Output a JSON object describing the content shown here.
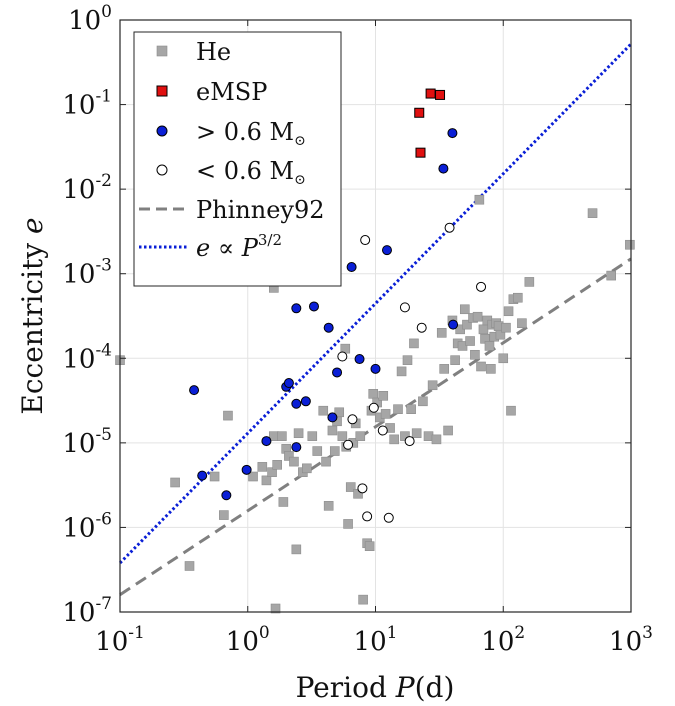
{
  "chart_data": {
    "type": "scatter",
    "xscale": "log",
    "yscale": "log",
    "xlim": [
      0.1,
      1000
    ],
    "ylim": [
      1e-07,
      1
    ],
    "grid": true,
    "xlabel": {
      "text": "Period",
      "var": "P",
      "unit": "(d)"
    },
    "ylabel": {
      "text": "Eccentricity",
      "var": "e"
    },
    "x_ticks": [
      {
        "base": "10",
        "exp": "-1"
      },
      {
        "base": "10",
        "exp": "0"
      },
      {
        "base": "10",
        "exp": "1"
      },
      {
        "base": "10",
        "exp": "2"
      },
      {
        "base": "10",
        "exp": "3"
      }
    ],
    "y_ticks": [
      {
        "base": "10",
        "exp": "-7"
      },
      {
        "base": "10",
        "exp": "-6"
      },
      {
        "base": "10",
        "exp": "-5"
      },
      {
        "base": "10",
        "exp": "-4"
      },
      {
        "base": "10",
        "exp": "-3"
      },
      {
        "base": "10",
        "exp": "-2"
      },
      {
        "base": "10",
        "exp": "-1"
      },
      {
        "base": "10",
        "exp": "0"
      }
    ],
    "legend": {
      "position": "top-left",
      "entries": [
        {
          "label": "He",
          "marker": "square",
          "color": "#a6a6a6"
        },
        {
          "label": "eMSP",
          "marker": "square",
          "color": "#e01010"
        },
        {
          "label_main": "> 0.6 M",
          "label_sub": "⊙",
          "marker": "circle",
          "color": "#0a1fd6"
        },
        {
          "label_main": "< 0.6 M",
          "label_sub": "⊙",
          "marker": "circle",
          "color": "#ffffff"
        },
        {
          "label": "Phinney92",
          "marker": "dashed-line",
          "color": "#808080"
        },
        {
          "label_main": "e ∝ P",
          "label_sup": "3/2",
          "marker": "dotted-line",
          "color": "#0a1fd6"
        }
      ]
    },
    "series": [
      {
        "name": "He",
        "marker": "square",
        "color": "#a6a6a6",
        "points": [
          [
            0.1,
            9.5e-05
          ],
          [
            0.27,
            3.4e-06
          ],
          [
            0.35,
            3.5e-07
          ],
          [
            0.55,
            4e-06
          ],
          [
            0.65,
            1.4e-06
          ],
          [
            0.7,
            2.1e-05
          ],
          [
            1.1,
            4e-06
          ],
          [
            1.3,
            5.2e-06
          ],
          [
            1.4,
            3.6e-06
          ],
          [
            1.55,
            4.5e-06
          ],
          [
            1.6,
            1.2e-05
          ],
          [
            1.6,
            0.00068
          ],
          [
            1.65,
            1.1e-07
          ],
          [
            1.7,
            5.5e-06
          ],
          [
            1.85,
            1.2e-05
          ],
          [
            1.9,
            2e-06
          ],
          [
            2.0,
            8.5e-06
          ],
          [
            2.1,
            7e-06
          ],
          [
            2.3,
            6e-06
          ],
          [
            2.4,
            5.5e-07
          ],
          [
            2.5,
            1.3e-05
          ],
          [
            2.7,
            4.5e-06
          ],
          [
            2.9,
            5e-06
          ],
          [
            3.2,
            1.2e-05
          ],
          [
            3.5,
            8e-06
          ],
          [
            3.9,
            2.4e-05
          ],
          [
            4.1,
            6e-06
          ],
          [
            4.3,
            1.8e-06
          ],
          [
            4.6,
            1.4e-05
          ],
          [
            4.8,
            8e-06
          ],
          [
            5.0,
            1.8e-05
          ],
          [
            5.2,
            2.3e-05
          ],
          [
            5.5,
            1.2e-05
          ],
          [
            5.8,
            0.00013
          ],
          [
            5.9,
            9e-06
          ],
          [
            6.1,
            1.1e-06
          ],
          [
            6.4,
            3e-06
          ],
          [
            6.7,
            1e-05
          ],
          [
            7.0,
            1.7e-05
          ],
          [
            7.3,
            2.5e-06
          ],
          [
            7.6,
            1.2e-05
          ],
          [
            8.0,
            1.4e-07
          ],
          [
            8.6,
            6.5e-07
          ],
          [
            9.0,
            6e-07
          ],
          [
            9.3,
            2.4e-05
          ],
          [
            9.6,
            3.8e-05
          ],
          [
            10.3,
            3e-05
          ],
          [
            10.8,
            2e-05
          ],
          [
            11.5,
            3.6e-05
          ],
          [
            12.0,
            2.2e-05
          ],
          [
            13.0,
            1.5e-05
          ],
          [
            14.0,
            1.1e-05
          ],
          [
            15.0,
            2.5e-05
          ],
          [
            16.0,
            7e-05
          ],
          [
            17.0,
            1.2e-05
          ],
          [
            17.8,
            9.5e-05
          ],
          [
            19.0,
            2.5e-05
          ],
          [
            20.0,
            0.00015
          ],
          [
            21.0,
            1.3e-05
          ],
          [
            23.5,
            3.1e-05
          ],
          [
            26.0,
            1.2e-05
          ],
          [
            28.0,
            4.8e-05
          ],
          [
            30.0,
            1.1e-05
          ],
          [
            33.0,
            0.0002
          ],
          [
            34.5,
            7.5e-05
          ],
          [
            37.0,
            1.4e-05
          ],
          [
            40.0,
            0.00028
          ],
          [
            42.0,
            9.5e-05
          ],
          [
            44.0,
            0.00015
          ],
          [
            46.0,
            0.00022
          ],
          [
            48.0,
            0.00014
          ],
          [
            50.0,
            0.00038
          ],
          [
            52.0,
            0.00025
          ],
          [
            55.0,
            0.00016
          ],
          [
            58.0,
            0.0003
          ],
          [
            60.0,
            0.00011
          ],
          [
            63.0,
            0.00031
          ],
          [
            65.0,
            0.0075
          ],
          [
            67.0,
            8e-05
          ],
          [
            70.0,
            0.00022
          ],
          [
            72.0,
            0.00017
          ],
          [
            75.0,
            0.00028
          ],
          [
            78.0,
            0.00014
          ],
          [
            80.0,
            7.5e-05
          ],
          [
            82.0,
            0.00025
          ],
          [
            85.0,
            0.00018
          ],
          [
            88.0,
            0.00026
          ],
          [
            92.0,
            0.00024
          ],
          [
            95.0,
            0.00019
          ],
          [
            100.0,
            0.0001
          ],
          [
            105.0,
            0.00023
          ],
          [
            110.0,
            0.00036
          ],
          [
            115.0,
            2.4e-05
          ],
          [
            120.0,
            0.0005
          ],
          [
            130.0,
            0.00052
          ],
          [
            140.0,
            0.00026
          ],
          [
            160.0,
            0.0008
          ],
          [
            500.0,
            0.0052
          ],
          [
            700.0,
            0.00095
          ],
          [
            980.0,
            0.0022
          ]
        ]
      },
      {
        "name": "eMSP",
        "marker": "square",
        "color": "#e01010",
        "points": [
          [
            22.0,
            0.08
          ],
          [
            22.5,
            0.027
          ],
          [
            27.0,
            0.135
          ],
          [
            32.0,
            0.13
          ]
        ]
      },
      {
        "name": "> 0.6 Msun",
        "marker": "circle",
        "color": "#0a1fd6",
        "points": [
          [
            0.38,
            4.2e-05
          ],
          [
            0.44,
            4.1e-06
          ],
          [
            0.68,
            2.4e-06
          ],
          [
            0.98,
            4.8e-06
          ],
          [
            1.4,
            1.05e-05
          ],
          [
            2.0,
            4.6e-05
          ],
          [
            2.1,
            5.1e-05
          ],
          [
            2.4,
            0.00039
          ],
          [
            2.4,
            2.9e-05
          ],
          [
            2.4,
            8.9e-06
          ],
          [
            2.85,
            3.1e-05
          ],
          [
            3.3,
            0.00041
          ],
          [
            4.3,
            0.00023
          ],
          [
            4.6,
            2e-05
          ],
          [
            5.0,
            6.8e-05
          ],
          [
            6.5,
            0.0012
          ],
          [
            7.5,
            9.8e-05
          ],
          [
            10.0,
            7.5e-05
          ],
          [
            12.3,
            0.0019
          ],
          [
            34.0,
            0.0175
          ],
          [
            40.0,
            0.046
          ],
          [
            40.5,
            0.00025
          ]
        ]
      },
      {
        "name": "< 0.6 Msun",
        "marker": "circle",
        "color": "#ffffff",
        "points": [
          [
            5.5,
            0.000105
          ],
          [
            6.1,
            9.5e-06
          ],
          [
            6.6,
            1.9e-05
          ],
          [
            7.9,
            2.9e-06
          ],
          [
            8.3,
            0.0025
          ],
          [
            8.6,
            1.35e-06
          ],
          [
            9.7,
            2.6e-05
          ],
          [
            11.4,
            1.4e-05
          ],
          [
            12.7,
            1.3e-06
          ],
          [
            17.0,
            0.0004
          ],
          [
            18.5,
            1.05e-05
          ],
          [
            23.0,
            0.00023
          ],
          [
            38.0,
            0.0035
          ],
          [
            67.0,
            0.0007
          ]
        ]
      }
    ],
    "lines": [
      {
        "name": "Phinney92",
        "style": "dashed",
        "color": "#808080",
        "points": [
          [
            0.1,
            1.6e-07
          ],
          [
            1000,
            0.0015
          ]
        ]
      },
      {
        "name": "e ∝ P^(3/2)",
        "style": "dotted",
        "color": "#0a1fd6",
        "points": [
          [
            0.1,
            3.8e-07
          ],
          [
            1000,
            0.52
          ]
        ]
      }
    ]
  }
}
